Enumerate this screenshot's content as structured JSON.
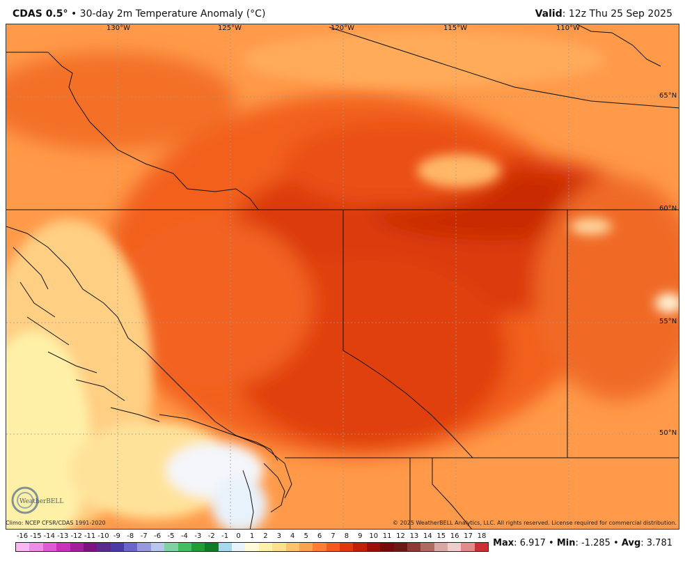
{
  "header": {
    "model": "CDAS 0.5",
    "degree_symbol": "°",
    "bullet": "•",
    "product": "30-day 2m Temperature Anomaly (°C)",
    "valid_label": "Valid",
    "valid_value": "12z Thu 25 Sep 2025"
  },
  "map": {
    "longitudes": [
      "130°W",
      "125°W",
      "120°W",
      "115°W",
      "110°W"
    ],
    "latitudes": [
      "65°N",
      "60°N",
      "55°N",
      "50°N"
    ],
    "climo_note": "Climo: NCEP CFSR/CDAS 1991-2020",
    "copyright": "© 2025 WeatherBELL Analytics, LLC. All rights reserved. License required for commercial distribution.",
    "logo_text": "WeatherBELL"
  },
  "legend": {
    "values": [
      "-16",
      "-15",
      "-14",
      "-13",
      "-12",
      "-11",
      "-10",
      "-9",
      "-8",
      "-7",
      "-6",
      "-5",
      "-4",
      "-3",
      "-2",
      "-1",
      "0",
      "1",
      "2",
      "3",
      "4",
      "5",
      "6",
      "7",
      "8",
      "9",
      "10",
      "11",
      "12",
      "13",
      "14",
      "15",
      "16",
      "17",
      "18"
    ],
    "colors": [
      "#f7b8f2",
      "#ee8ce8",
      "#e05ad6",
      "#c832be",
      "#a51c9c",
      "#7e1282",
      "#5a2a8e",
      "#4b3aa8",
      "#6a66cc",
      "#9898e0",
      "#b8c6ee",
      "#7fd3a4",
      "#3fbf62",
      "#1e9e34",
      "#0f7d23",
      "#a8d8ee",
      "#e9f3fb",
      "#fffbd8",
      "#fff2a8",
      "#ffe08a",
      "#ffc46a",
      "#ffa24e",
      "#ff7f32",
      "#f45a1c",
      "#e0380a",
      "#c02004",
      "#9a1004",
      "#7a0a08",
      "#6e1a14",
      "#8e3a32",
      "#b06a62",
      "#d8a8a2",
      "#f0cccc",
      "#e48a8a",
      "#c83232"
    ]
  },
  "stats": {
    "max_label": "Max",
    "max_value": "6.917",
    "min_label": "Min",
    "min_value": "-1.285",
    "avg_label": "Avg",
    "avg_value": "3.781"
  }
}
